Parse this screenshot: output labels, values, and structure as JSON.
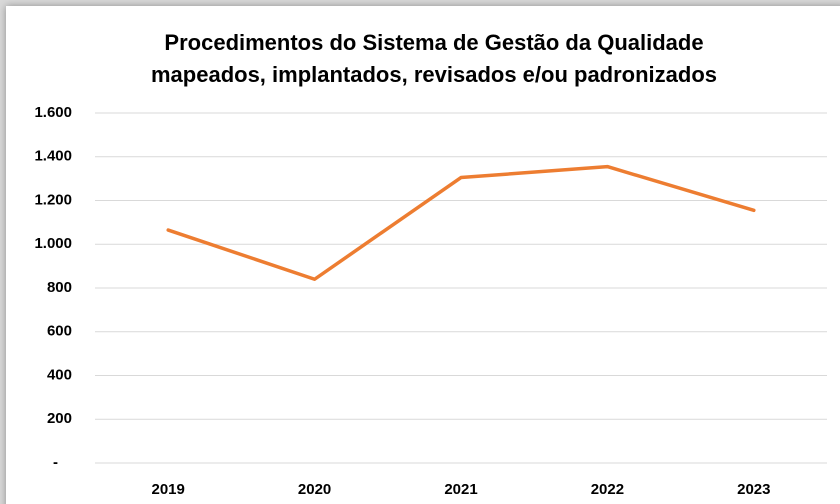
{
  "chart_data": {
    "type": "line",
    "title": [
      "Procedimentos do Sistema de Gestão da Qualidade",
      "mapeados, implantados, revisados e/ou padronizados"
    ],
    "categories": [
      "2019",
      "2020",
      "2021",
      "2022",
      "2023"
    ],
    "values": [
      1065,
      840,
      1305,
      1355,
      1155
    ],
    "color": "#ED7D31",
    "ylim": [
      0,
      1600
    ],
    "yticks": [
      {
        "value": 0,
        "label": "-"
      },
      200,
      400,
      600,
      800,
      {
        "value": 1000,
        "label": "1.000"
      },
      {
        "value": 1200,
        "label": "1.200"
      },
      {
        "value": 1400,
        "label": "1.400"
      },
      {
        "value": 1600,
        "label": "1.600"
      }
    ],
    "grid": true
  }
}
